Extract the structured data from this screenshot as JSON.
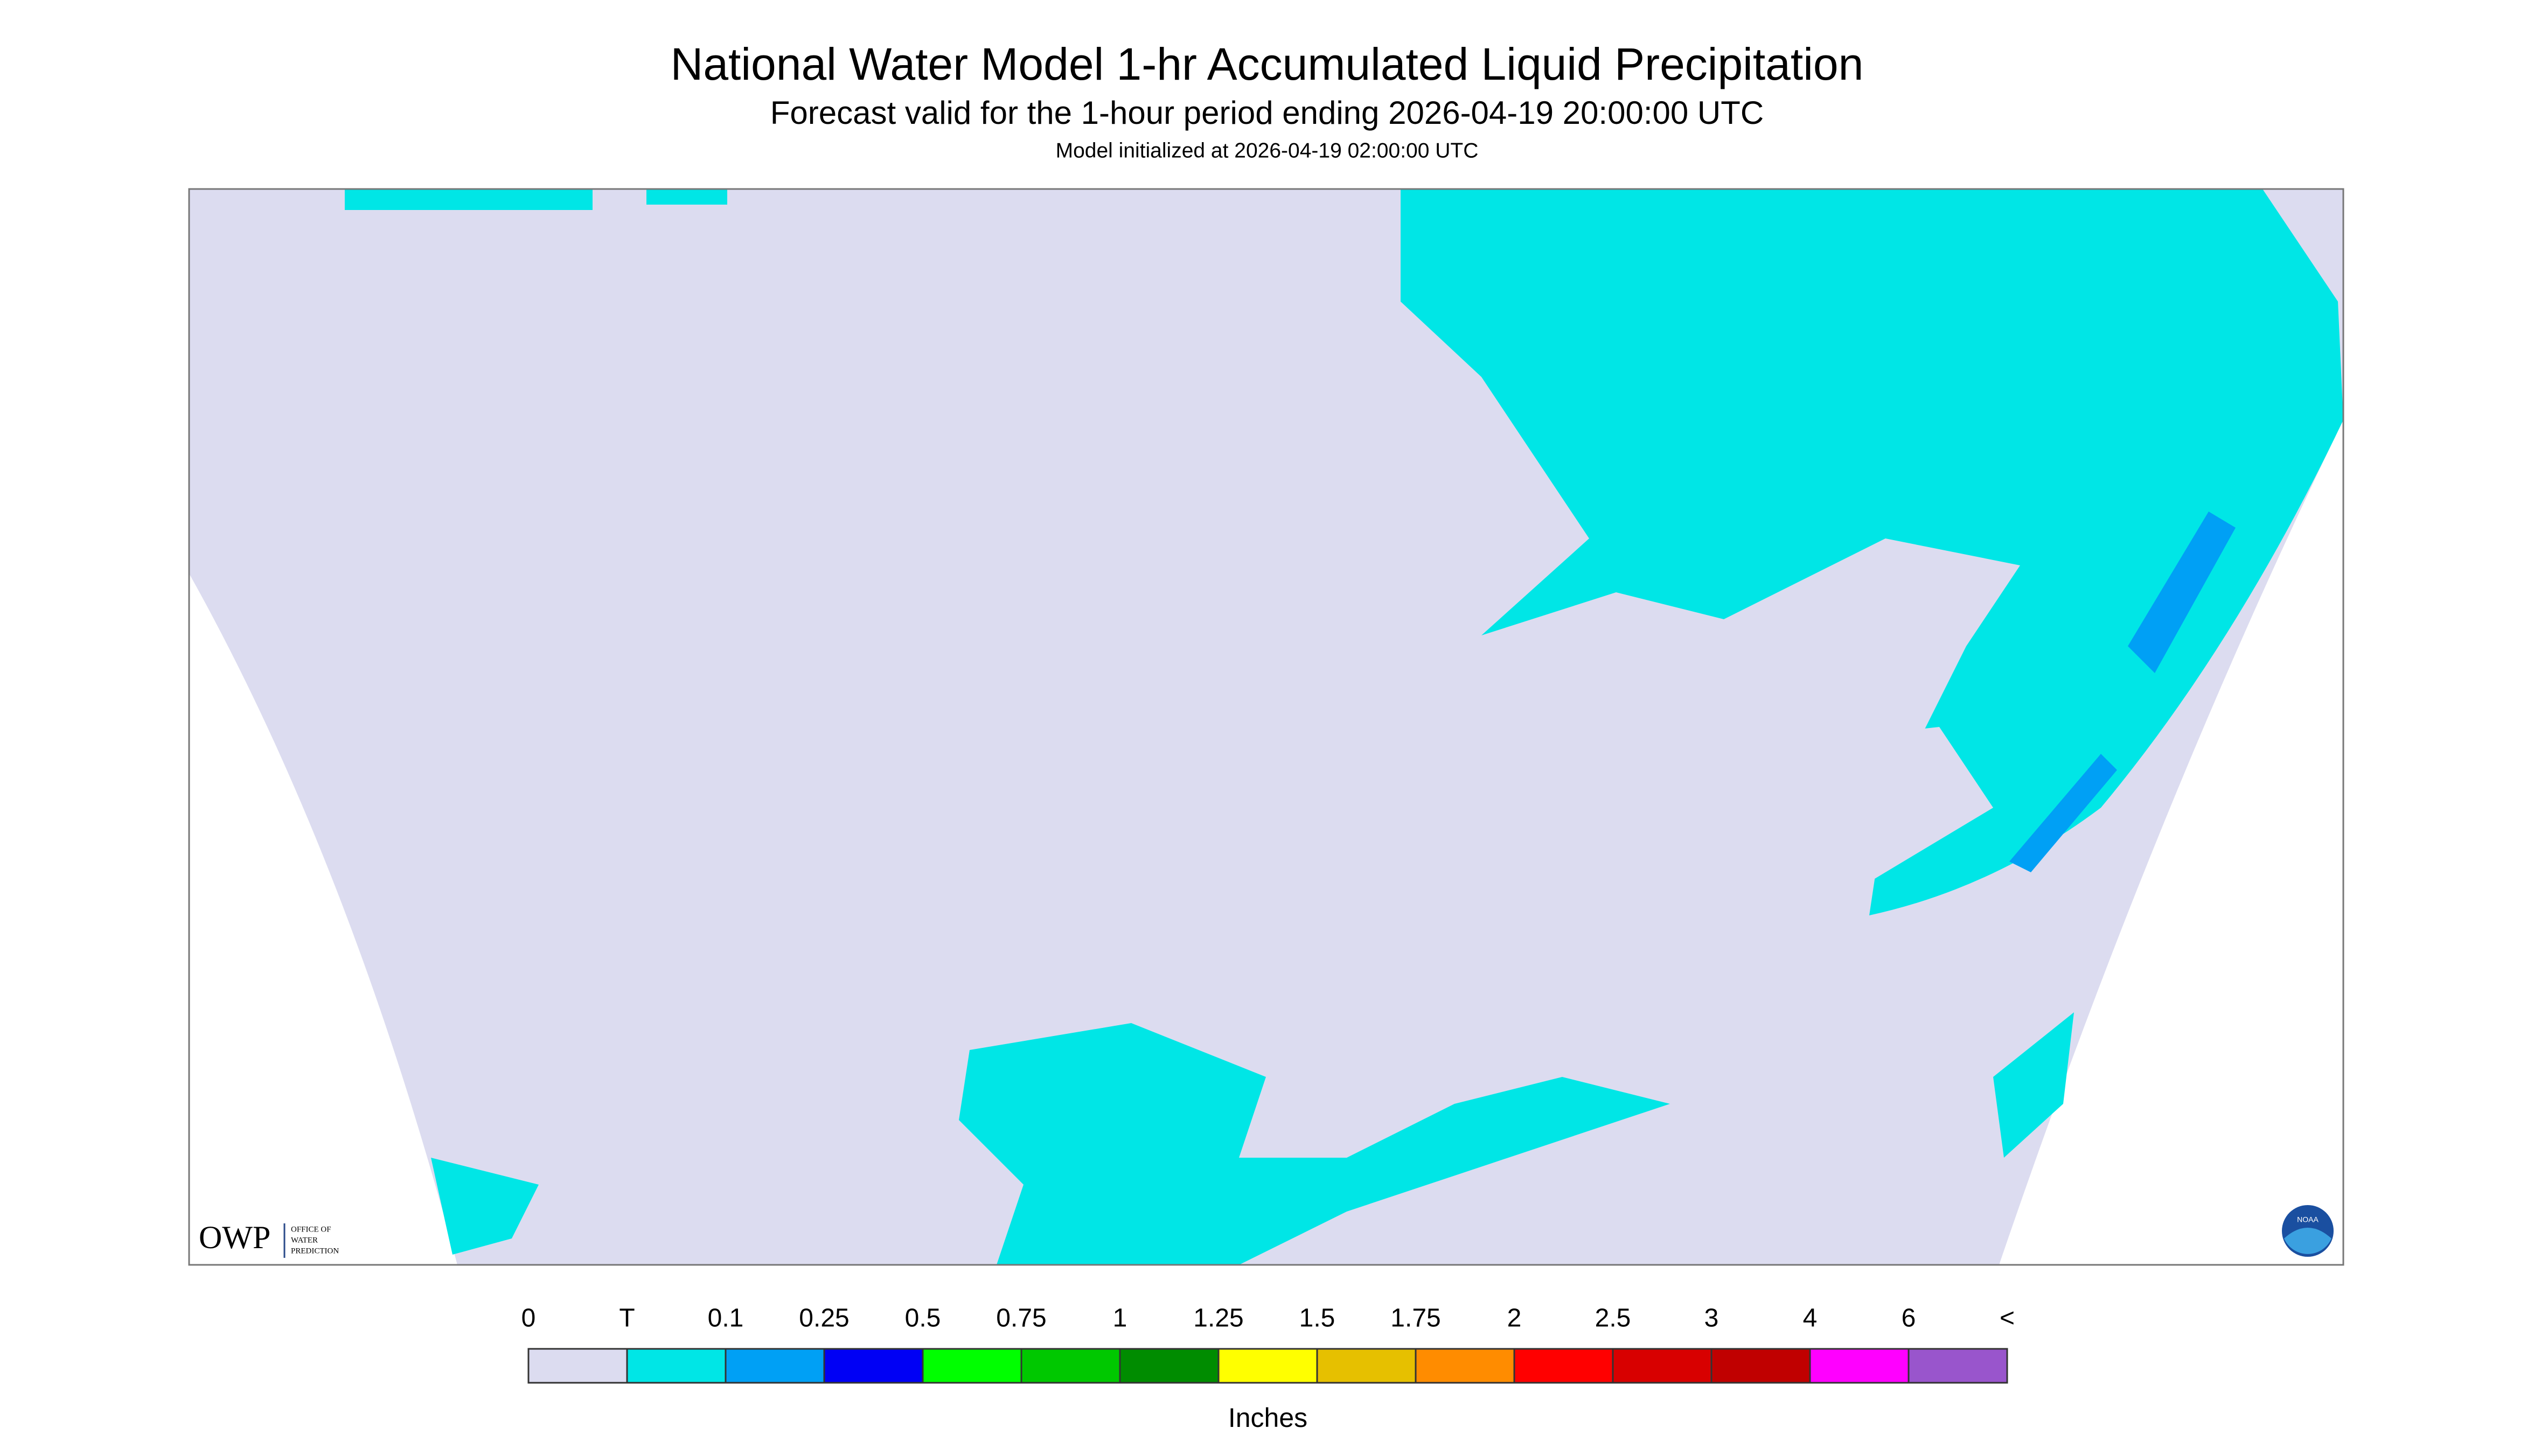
{
  "header": {
    "title": "National Water Model 1-hr Accumulated Liquid Precipitation",
    "subtitle": "Forecast valid for the 1-hour period ending 2026-04-19 20:00:00 UTC",
    "note": "Model initialized at 2026-04-19 02:00:00 UTC"
  },
  "legend": {
    "labels": [
      "0",
      "T",
      "0.1",
      "0.25",
      "0.5",
      "0.75",
      "1",
      "1.25",
      "1.5",
      "1.75",
      "2",
      "2.5",
      "3",
      "4",
      "6",
      "<"
    ],
    "colors": [
      "#dcdcf0",
      "#00e6e6",
      "#00a0f5",
      "#0000f5",
      "#00ff00",
      "#00c800",
      "#008c00",
      "#ffff00",
      "#e6c000",
      "#ff8c00",
      "#ff0000",
      "#d80000",
      "#c00000",
      "#ff00ff",
      "#9955cc"
    ],
    "unit": "Inches"
  },
  "logos": {
    "owp": "OWP",
    "owp_text": [
      "OFFICE OF",
      "WATER",
      "PREDICTION"
    ],
    "noaa": "NOAA"
  }
}
